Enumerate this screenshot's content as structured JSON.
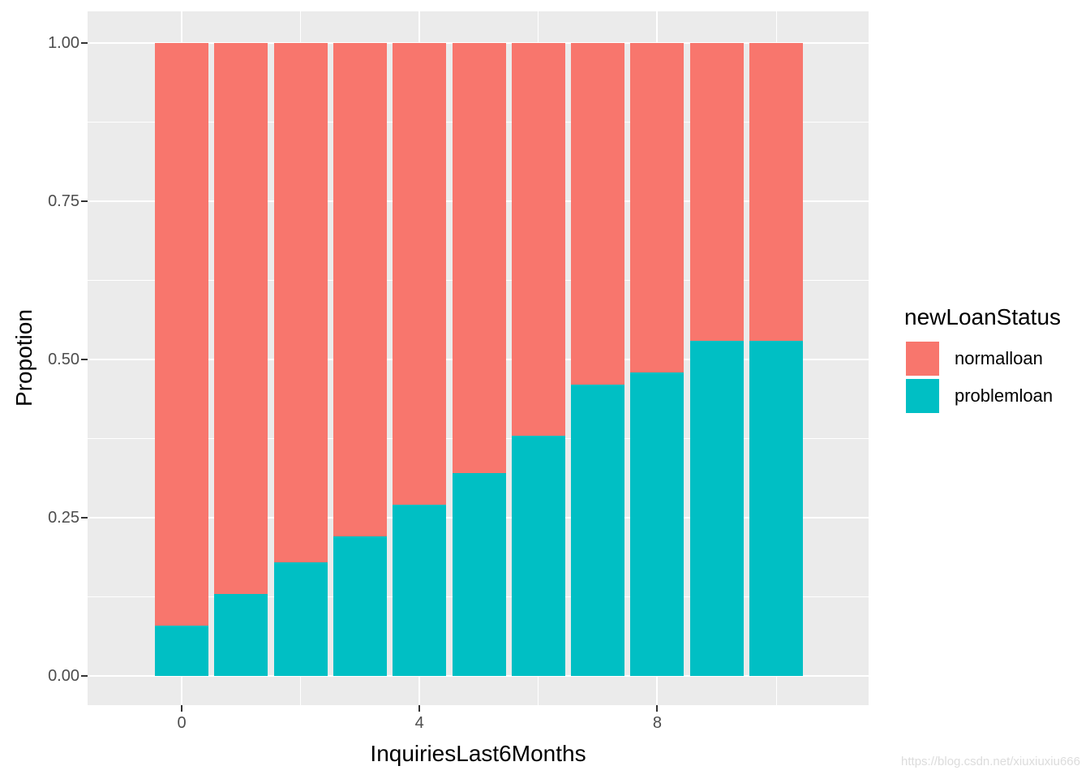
{
  "watermark": "https://blog.csdn.net/xiuxiuxiu666",
  "colors": {
    "normalloan": "#F8766D",
    "problemloan": "#00BFC4",
    "panel_bg": "#EBEBEB",
    "gridline": "#FFFFFF",
    "tick_text": "#4D4D4D",
    "axis_text": "#000000",
    "watermark_text": "#DCDCDC"
  },
  "chart_data": {
    "type": "bar",
    "stacked": true,
    "normalized": true,
    "title": "",
    "xlabel": "InquiriesLast6Months",
    "ylabel": "Propotion",
    "x": [
      0,
      1,
      2,
      3,
      4,
      5,
      6,
      7,
      8,
      9,
      10
    ],
    "series": [
      {
        "name": "normalloan",
        "color": "#F8766D",
        "values": [
          0.92,
          0.87,
          0.82,
          0.78,
          0.73,
          0.68,
          0.62,
          0.54,
          0.52,
          0.47,
          0.47
        ]
      },
      {
        "name": "problemloan",
        "color": "#00BFC4",
        "values": [
          0.08,
          0.13,
          0.18,
          0.22,
          0.27,
          0.32,
          0.38,
          0.46,
          0.48,
          0.53,
          0.53
        ]
      }
    ],
    "ylim": [
      0,
      1
    ],
    "y_ticks": [
      "0.00",
      "0.25",
      "0.50",
      "0.75",
      "1.00"
    ],
    "y_tick_values": [
      0.0,
      0.25,
      0.5,
      0.75,
      1.0
    ],
    "x_ticks": [
      {
        "label": "0",
        "value": 0
      },
      {
        "label": "4",
        "value": 4
      },
      {
        "label": "8",
        "value": 8
      }
    ],
    "minor_gridlines_y": [
      0.125,
      0.375,
      0.625,
      0.875
    ],
    "minor_gridlines_x": [
      2,
      6,
      10
    ],
    "grid": true,
    "legend": {
      "title": "newLoanStatus",
      "position": "right",
      "entries": [
        "normalloan",
        "problemloan"
      ]
    }
  }
}
